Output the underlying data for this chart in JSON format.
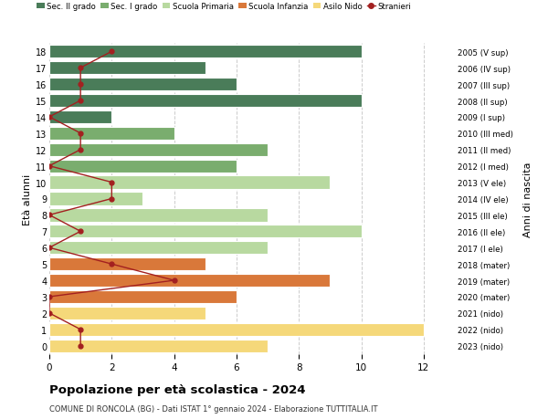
{
  "ages": [
    18,
    17,
    16,
    15,
    14,
    13,
    12,
    11,
    10,
    9,
    8,
    7,
    6,
    5,
    4,
    3,
    2,
    1,
    0
  ],
  "bar_values": [
    10,
    5,
    6,
    10,
    2,
    4,
    7,
    6,
    9,
    3,
    7,
    10,
    7,
    5,
    9,
    6,
    5,
    12,
    7
  ],
  "stranieri_values": [
    2,
    1,
    1,
    1,
    0,
    1,
    1,
    0,
    2,
    2,
    0,
    1,
    0,
    2,
    4,
    0,
    0,
    1,
    1
  ],
  "right_labels": [
    "2005 (V sup)",
    "2006 (IV sup)",
    "2007 (III sup)",
    "2008 (II sup)",
    "2009 (I sup)",
    "2010 (III med)",
    "2011 (II med)",
    "2012 (I med)",
    "2013 (V ele)",
    "2014 (IV ele)",
    "2015 (III ele)",
    "2016 (II ele)",
    "2017 (I ele)",
    "2018 (mater)",
    "2019 (mater)",
    "2020 (mater)",
    "2021 (nido)",
    "2022 (nido)",
    "2023 (nido)"
  ],
  "bar_colors": [
    "#4a7c59",
    "#4a7c59",
    "#4a7c59",
    "#4a7c59",
    "#4a7c59",
    "#7aad6e",
    "#7aad6e",
    "#7aad6e",
    "#b8d9a0",
    "#b8d9a0",
    "#b8d9a0",
    "#b8d9a0",
    "#b8d9a0",
    "#d9783a",
    "#d9783a",
    "#d9783a",
    "#f5d87a",
    "#f5d87a",
    "#f5d87a"
  ],
  "legend_labels": [
    "Sec. II grado",
    "Sec. I grado",
    "Scuola Primaria",
    "Scuola Infanzia",
    "Asilo Nido",
    "Stranieri"
  ],
  "legend_colors": [
    "#4a7c59",
    "#7aad6e",
    "#b8d9a0",
    "#d9783a",
    "#f5d87a",
    "#a32020"
  ],
  "title": "Popolazione per età scolastica - 2024",
  "subtitle": "COMUNE DI RONCOLA (BG) - Dati ISTAT 1° gennaio 2024 - Elaborazione TUTTITALIA.IT",
  "ylabel": "Età alunni",
  "right_ylabel": "Anni di nascita",
  "xlabel_vals": [
    0,
    2,
    4,
    6,
    8,
    10,
    12
  ],
  "xlim": [
    0,
    13
  ],
  "ylim": [
    -0.5,
    18.5
  ],
  "stranieri_color": "#a32020",
  "bar_height": 0.8,
  "background_color": "#ffffff",
  "grid_color": "#cccccc"
}
